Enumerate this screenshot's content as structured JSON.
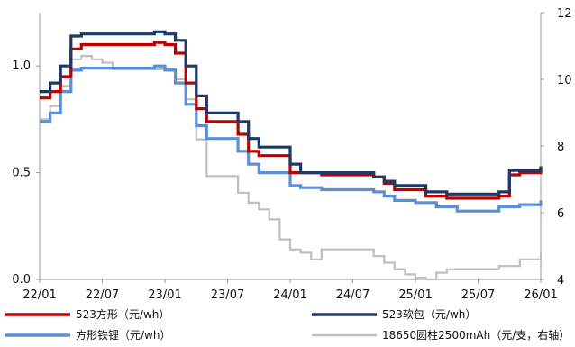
{
  "chart_data": {
    "type": "line",
    "x_ticks": [
      "22/01",
      "22/07",
      "23/01",
      "23/07",
      "24/01",
      "24/07",
      "25/01",
      "25/07",
      "26/01"
    ],
    "x_range": [
      "22/01",
      "26/01"
    ],
    "y_left": {
      "range": [
        0,
        1.25
      ],
      "ticks": [
        "0.0",
        "0.5",
        "1.0"
      ],
      "tick_values": [
        0,
        0.5,
        1.0
      ]
    },
    "y_right": {
      "range": [
        4,
        12
      ],
      "ticks": [
        "4",
        "6",
        "8",
        "10",
        "12"
      ],
      "tick_values": [
        4,
        6,
        8,
        10,
        12
      ]
    },
    "legend": {
      "placement": "bottom",
      "columns": 2
    },
    "series": [
      {
        "name": "523方形（元/wh）",
        "axis": "left",
        "color": "#c00000",
        "points": [
          [
            "22/01",
            0.85
          ],
          [
            "22/02",
            0.88
          ],
          [
            "22/03",
            0.95
          ],
          [
            "22/04",
            1.08
          ],
          [
            "22/05",
            1.1
          ],
          [
            "22/06",
            1.1
          ],
          [
            "22/09",
            1.1
          ],
          [
            "22/12",
            1.11
          ],
          [
            "23/01",
            1.1
          ],
          [
            "23/02",
            1.06
          ],
          [
            "23/03",
            0.92
          ],
          [
            "23/04",
            0.8
          ],
          [
            "23/05",
            0.74
          ],
          [
            "23/06",
            0.74
          ],
          [
            "23/07",
            0.74
          ],
          [
            "23/08",
            0.68
          ],
          [
            "23/09",
            0.6
          ],
          [
            "23/10",
            0.58
          ],
          [
            "23/12",
            0.58
          ],
          [
            "24/01",
            0.5
          ],
          [
            "24/02",
            0.5
          ],
          [
            "24/04",
            0.49
          ],
          [
            "24/07",
            0.49
          ],
          [
            "24/09",
            0.48
          ],
          [
            "24/10",
            0.45
          ],
          [
            "24/11",
            0.42
          ],
          [
            "25/01",
            0.42
          ],
          [
            "25/02",
            0.39
          ],
          [
            "25/04",
            0.38
          ],
          [
            "25/07",
            0.38
          ],
          [
            "25/09",
            0.39
          ],
          [
            "25/10",
            0.49
          ],
          [
            "25/11",
            0.5
          ],
          [
            "26/01",
            0.52
          ]
        ]
      },
      {
        "name": "523软包（元/wh）",
        "axis": "left",
        "color": "#1f3864",
        "points": [
          [
            "22/01",
            0.88
          ],
          [
            "22/02",
            0.92
          ],
          [
            "22/03",
            1.0
          ],
          [
            "22/04",
            1.14
          ],
          [
            "22/05",
            1.15
          ],
          [
            "22/06",
            1.15
          ],
          [
            "22/09",
            1.15
          ],
          [
            "22/12",
            1.16
          ],
          [
            "23/01",
            1.15
          ],
          [
            "23/02",
            1.12
          ],
          [
            "23/03",
            1.0
          ],
          [
            "23/04",
            0.86
          ],
          [
            "23/05",
            0.78
          ],
          [
            "23/06",
            0.78
          ],
          [
            "23/07",
            0.78
          ],
          [
            "23/08",
            0.74
          ],
          [
            "23/09",
            0.66
          ],
          [
            "23/10",
            0.62
          ],
          [
            "23/12",
            0.62
          ],
          [
            "24/01",
            0.54
          ],
          [
            "24/02",
            0.5
          ],
          [
            "24/04",
            0.5
          ],
          [
            "24/07",
            0.5
          ],
          [
            "24/09",
            0.48
          ],
          [
            "24/10",
            0.46
          ],
          [
            "24/11",
            0.44
          ],
          [
            "25/01",
            0.44
          ],
          [
            "25/02",
            0.41
          ],
          [
            "25/04",
            0.4
          ],
          [
            "25/07",
            0.4
          ],
          [
            "25/09",
            0.41
          ],
          [
            "25/10",
            0.51
          ],
          [
            "25/11",
            0.51
          ],
          [
            "26/01",
            0.53
          ]
        ]
      },
      {
        "name": "方形铁锂（元/wh）",
        "axis": "left",
        "color": "#5b8fd6",
        "points": [
          [
            "22/01",
            0.74
          ],
          [
            "22/02",
            0.78
          ],
          [
            "22/03",
            0.88
          ],
          [
            "22/04",
            0.98
          ],
          [
            "22/05",
            0.99
          ],
          [
            "22/06",
            0.99
          ],
          [
            "22/09",
            0.99
          ],
          [
            "22/12",
            1.0
          ],
          [
            "23/01",
            0.98
          ],
          [
            "23/02",
            0.92
          ],
          [
            "23/03",
            0.82
          ],
          [
            "23/04",
            0.72
          ],
          [
            "23/05",
            0.66
          ],
          [
            "23/06",
            0.66
          ],
          [
            "23/07",
            0.66
          ],
          [
            "23/08",
            0.6
          ],
          [
            "23/09",
            0.54
          ],
          [
            "23/10",
            0.5
          ],
          [
            "23/12",
            0.5
          ],
          [
            "24/01",
            0.44
          ],
          [
            "24/02",
            0.43
          ],
          [
            "24/04",
            0.42
          ],
          [
            "24/07",
            0.42
          ],
          [
            "24/09",
            0.41
          ],
          [
            "24/10",
            0.39
          ],
          [
            "24/11",
            0.37
          ],
          [
            "25/01",
            0.36
          ],
          [
            "25/03",
            0.34
          ],
          [
            "25/05",
            0.32
          ],
          [
            "25/07",
            0.32
          ],
          [
            "25/09",
            0.34
          ],
          [
            "25/11",
            0.35
          ],
          [
            "26/01",
            0.37
          ]
        ]
      },
      {
        "name": "18650圆柱2500mAh（元/支，右轴）",
        "axis": "right",
        "color": "#bfbfbf",
        "points": [
          [
            "22/01",
            8.8
          ],
          [
            "22/02",
            9.2
          ],
          [
            "22/03",
            9.8
          ],
          [
            "22/04",
            10.6
          ],
          [
            "22/05",
            10.7
          ],
          [
            "22/06",
            10.6
          ],
          [
            "22/07",
            10.5
          ],
          [
            "22/08",
            10.3
          ],
          [
            "22/12",
            10.3
          ],
          [
            "23/01",
            10.3
          ],
          [
            "23/02",
            10.0
          ],
          [
            "23/03",
            9.4
          ],
          [
            "23/04",
            8.2
          ],
          [
            "23/05",
            7.1
          ],
          [
            "23/06",
            7.1
          ],
          [
            "23/07",
            7.1
          ],
          [
            "23/08",
            6.6
          ],
          [
            "23/09",
            6.3
          ],
          [
            "23/10",
            6.1
          ],
          [
            "23/11",
            5.8
          ],
          [
            "23/12",
            5.2
          ],
          [
            "24/01",
            4.9
          ],
          [
            "24/02",
            4.8
          ],
          [
            "24/03",
            4.6
          ],
          [
            "24/04",
            4.9
          ],
          [
            "24/07",
            4.9
          ],
          [
            "24/09",
            4.7
          ],
          [
            "24/10",
            4.5
          ],
          [
            "24/11",
            4.3
          ],
          [
            "24/12",
            4.15
          ],
          [
            "25/01",
            4.05
          ],
          [
            "25/02",
            4.0
          ],
          [
            "25/03",
            4.2
          ],
          [
            "25/04",
            4.3
          ],
          [
            "25/07",
            4.3
          ],
          [
            "25/09",
            4.4
          ],
          [
            "25/11",
            4.6
          ],
          [
            "26/01",
            4.8
          ]
        ]
      }
    ]
  }
}
